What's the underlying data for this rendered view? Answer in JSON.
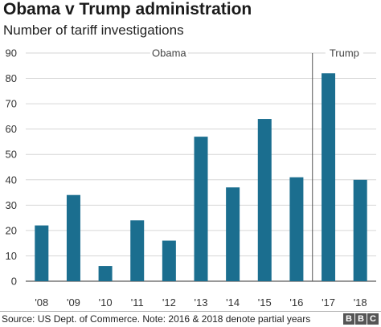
{
  "title": "Obama v Trump administration",
  "subtitle": "Number of tariff investigations",
  "source": "Source: US Dept. of Commerce. Note: 2016 & 2018 denote partial years",
  "logo_letters": [
    "B",
    "B",
    "C"
  ],
  "colors": {
    "bar": "#1b6e8f",
    "grid": "#d6d6d6",
    "divider": "#555555"
  },
  "chart_data": {
    "type": "bar",
    "title": "Obama v Trump administration",
    "subtitle": "Number of tariff investigations",
    "categories": [
      "'08",
      "'09",
      "'10",
      "'11",
      "'12",
      "'13",
      "'14",
      "'15",
      "'16",
      "'17",
      "'18"
    ],
    "values": [
      22,
      34,
      6,
      24,
      16,
      57,
      37,
      64,
      41,
      82,
      40
    ],
    "ylim": [
      0,
      90
    ],
    "yticks": [
      0,
      10,
      20,
      30,
      40,
      50,
      60,
      70,
      80,
      90
    ],
    "grid": true,
    "annotations": {
      "periods": [
        {
          "label": "Obama",
          "from": "'08",
          "to": "'16"
        },
        {
          "label": "Trump",
          "from": "'17",
          "to": "'18"
        }
      ],
      "divider_between": [
        "'16",
        "'17"
      ]
    }
  }
}
